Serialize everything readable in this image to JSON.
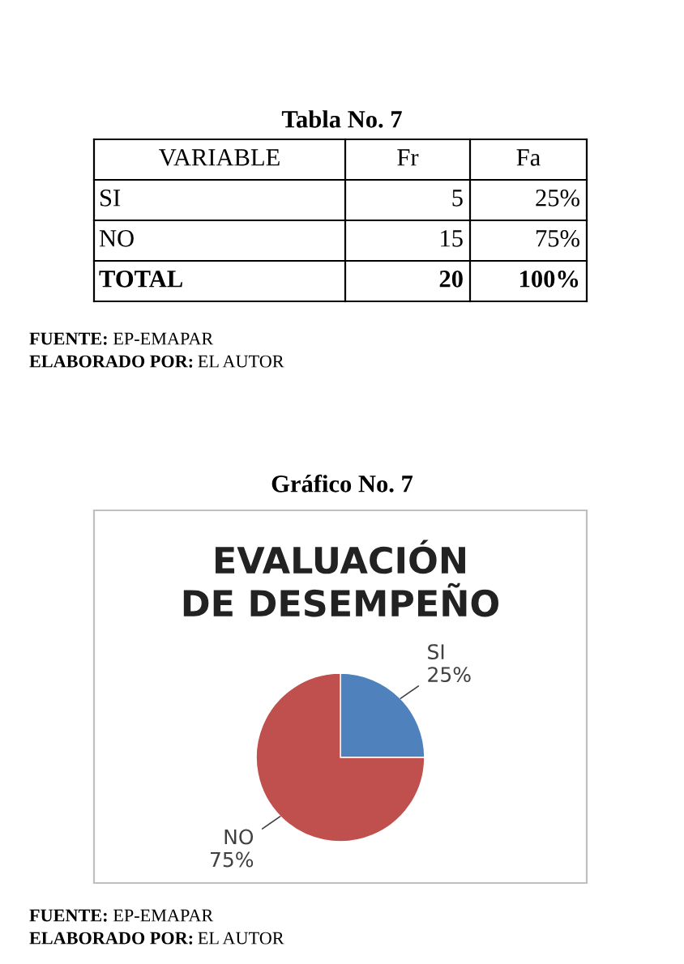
{
  "chart_data": [
    {
      "type": "other",
      "title": "Tabla No. 7",
      "categories": [
        "VARIABLE",
        "Fr",
        "Fa"
      ],
      "y_categories": [
        "SI",
        "NO",
        "TOTAL"
      ],
      "cell_labels": [
        [
          "5",
          "25%"
        ],
        [
          "15",
          "75%"
        ],
        [
          "20",
          "100%"
        ]
      ],
      "annotations": [
        "FUENTE: EP-EMAPAR",
        "ELABORADO POR: EL AUTOR"
      ]
    },
    {
      "type": "pie",
      "subtitle": "Gráfico No. 7",
      "title": "EVALUACIÓN DE DESEMPEÑO",
      "categories": [
        "SI",
        "NO"
      ],
      "values": [
        25,
        75
      ],
      "colors": [
        "#4f81bd",
        "#c0504d"
      ],
      "value_labels": [
        "25%",
        "75%"
      ],
      "annotations": [
        "FUENTE: EP-EMAPAR",
        "ELABORADO POR: EL AUTOR"
      ]
    }
  ]
}
